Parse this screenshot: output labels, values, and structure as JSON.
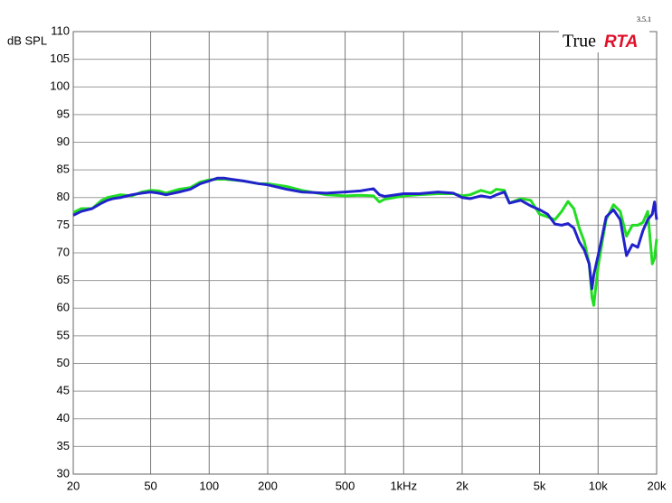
{
  "chart_data": {
    "type": "line",
    "ylabel": "dB SPL",
    "logo_main": "True",
    "logo_accent": "RTA",
    "version": "3.5.1",
    "xscale": "log",
    "grid": true,
    "xlim": [
      20,
      20000
    ],
    "ylim": [
      30,
      110
    ],
    "xticks": [
      20,
      50,
      100,
      200,
      500,
      {
        "value": 1000,
        "label": "1kHz"
      },
      {
        "value": 2000,
        "label": "2k"
      },
      {
        "value": 5000,
        "label": "5k"
      },
      {
        "value": 10000,
        "label": "10k"
      },
      {
        "value": 20000,
        "label": "20k"
      }
    ],
    "yticks": [
      30,
      35,
      40,
      45,
      50,
      55,
      60,
      65,
      70,
      75,
      80,
      85,
      90,
      95,
      100,
      105,
      110
    ],
    "x": [
      20,
      22,
      25,
      28,
      30,
      32,
      35,
      40,
      45,
      50,
      55,
      60,
      70,
      80,
      90,
      100,
      110,
      120,
      130,
      150,
      180,
      200,
      250,
      300,
      400,
      500,
      600,
      700,
      750,
      800,
      1000,
      1200,
      1500,
      1800,
      2000,
      2200,
      2500,
      2800,
      3000,
      3300,
      3500,
      4000,
      4500,
      5000,
      5500,
      6000,
      6500,
      7000,
      7500,
      8000,
      8500,
      9000,
      9300,
      9500,
      10000,
      10500,
      11000,
      12000,
      13000,
      14000,
      15000,
      16000,
      17000,
      18000,
      19000,
      19500,
      20000
    ],
    "series": [
      {
        "name": "Green",
        "color": "#22dd22",
        "values": [
          77.3,
          78,
          78,
          79.5,
          80,
          80.2,
          80.5,
          80.3,
          81,
          81.3,
          81.2,
          80.8,
          81.5,
          81.8,
          82.8,
          83.2,
          83.3,
          83.3,
          83.2,
          83,
          82.5,
          82.5,
          82,
          81.3,
          80.5,
          80.3,
          80.4,
          80.3,
          79.2,
          79.7,
          80.3,
          80.5,
          80.7,
          80.7,
          80.3,
          80.5,
          81.3,
          80.8,
          81.5,
          81.3,
          79,
          79.8,
          79.5,
          77,
          76.5,
          76,
          77.5,
          79.3,
          78,
          74.5,
          72,
          68,
          62,
          60.5,
          67.5,
          72,
          76,
          78.7,
          77.5,
          73,
          75,
          75,
          75.5,
          77.5,
          68,
          69,
          72.5
        ]
      },
      {
        "name": "Blue",
        "color": "#2222cc",
        "values": [
          76.8,
          77.5,
          78,
          79,
          79.5,
          79.8,
          80,
          80.5,
          80.8,
          81,
          80.8,
          80.5,
          81,
          81.5,
          82.5,
          83,
          83.5,
          83.5,
          83.3,
          83,
          82.5,
          82.3,
          81.5,
          81,
          80.8,
          81,
          81.2,
          81.6,
          80.5,
          80.2,
          80.7,
          80.7,
          81,
          80.8,
          80,
          79.8,
          80.3,
          80,
          80.5,
          81,
          79,
          79.5,
          78.5,
          77.8,
          77,
          75.2,
          75,
          75.3,
          74.5,
          72,
          70.5,
          68,
          63.5,
          66,
          69.5,
          73,
          76.5,
          77.8,
          76,
          69.5,
          71.5,
          71,
          74,
          76,
          77,
          79.2,
          76
        ]
      }
    ]
  }
}
